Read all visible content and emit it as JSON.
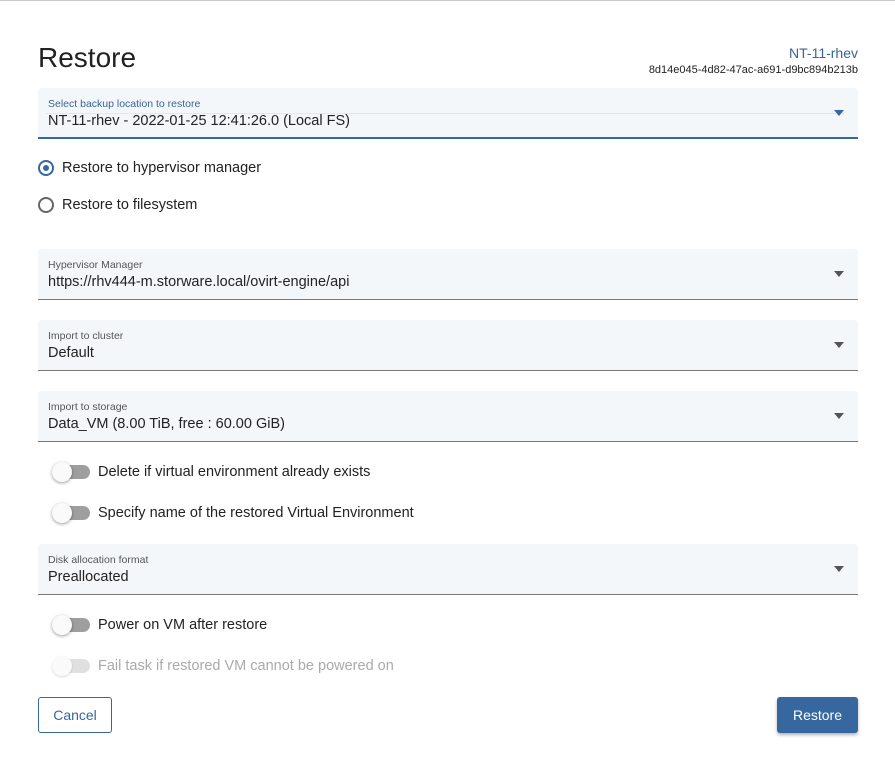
{
  "header": {
    "title": "Restore",
    "vm_name": "NT-11-rhev",
    "vm_id": "8d14e045-4d82-47ac-a691-d9bc894b213b"
  },
  "backup_location": {
    "label": "Select backup location to restore",
    "value": "NT-11-rhev - 2022-01-25 12:41:26.0 (Local FS)"
  },
  "restore_target": {
    "options": [
      {
        "label": "Restore to hypervisor manager",
        "selected": true
      },
      {
        "label": "Restore to filesystem",
        "selected": false
      }
    ]
  },
  "hypervisor_manager": {
    "label": "Hypervisor Manager",
    "value": "https://rhv444-m.storware.local/ovirt-engine/api"
  },
  "cluster": {
    "label": "Import to cluster",
    "value": "Default"
  },
  "storage": {
    "label": "Import to storage",
    "value": "Data_VM (8.00 TiB, free : 60.00 GiB)"
  },
  "toggles": {
    "delete_existing": {
      "label": "Delete if virtual environment already exists",
      "on": false
    },
    "specify_name": {
      "label": "Specify name of the restored Virtual Environment",
      "on": false
    },
    "power_on": {
      "label": "Power on VM after restore",
      "on": false
    },
    "fail_task": {
      "label": "Fail task if restored VM cannot be powered on",
      "on": false,
      "disabled": true
    }
  },
  "disk_format": {
    "label": "Disk allocation format",
    "value": "Preallocated"
  },
  "actions": {
    "cancel": "Cancel",
    "restore": "Restore"
  },
  "colors": {
    "accent": "#36679e",
    "field_bg": "#f4f7fa"
  }
}
